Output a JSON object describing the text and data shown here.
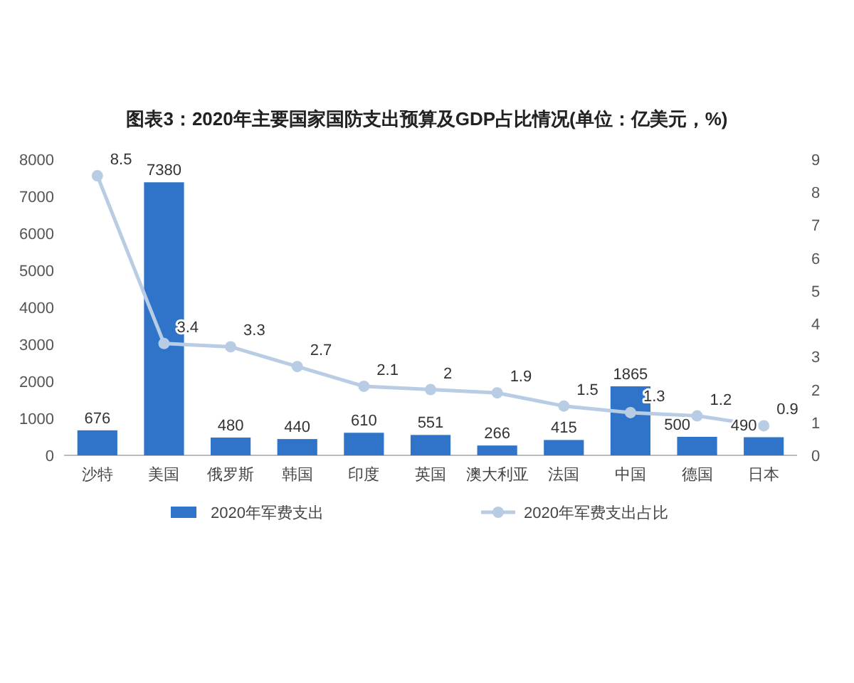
{
  "chart_data": {
    "type": "bar",
    "title": "图表3：2020年主要国家国防支出预算及GDP占比情况(单位：亿美元，%)",
    "categories": [
      "沙特",
      "美国",
      "俄罗斯",
      "韩国",
      "印度",
      "英国",
      "澳大利亚",
      "法国",
      "中国",
      "德国",
      "日本"
    ],
    "series": [
      {
        "name": "2020年军费支出",
        "color": "#2f74c8",
        "values": [
          676,
          7380,
          480,
          440,
          610,
          551,
          266,
          415,
          1865,
          500,
          490
        ]
      },
      {
        "name": "2020年军费支出占比",
        "type": "line",
        "axis": "y2",
        "color": "#b8cde4",
        "marker": "circle",
        "values": [
          8.5,
          3.4,
          3.3,
          2.7,
          2.1,
          2,
          1.9,
          1.5,
          1.3,
          1.2,
          0.9
        ]
      }
    ],
    "ylim": [
      0,
      8000
    ],
    "yticks": [
      0,
      1000,
      2000,
      3000,
      4000,
      5000,
      6000,
      7000,
      8000
    ],
    "y2lim": [
      0,
      9
    ],
    "y2ticks": [
      0,
      1,
      2,
      3,
      4,
      5,
      6,
      7,
      8,
      9
    ],
    "data_labels": true,
    "legend": "bottom",
    "grid": false
  }
}
